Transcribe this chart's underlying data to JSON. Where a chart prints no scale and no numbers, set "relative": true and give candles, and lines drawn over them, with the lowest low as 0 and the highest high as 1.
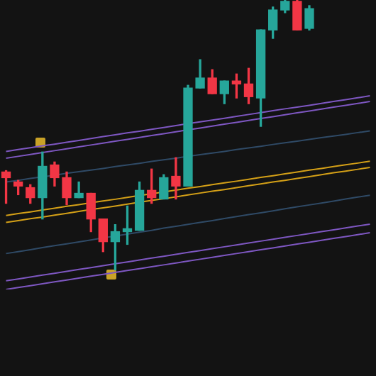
{
  "chart_data": {
    "type": "candlestick",
    "relative": true,
    "categories": [
      null,
      null,
      null,
      null,
      null,
      null,
      null,
      null,
      null,
      null,
      null,
      null,
      null,
      null,
      null,
      null,
      null,
      null,
      null,
      null,
      null,
      null,
      null,
      null,
      null,
      null,
      null,
      null,
      null,
      null,
      null
    ],
    "ohlc": [
      [
        0.363,
        0.368,
        0.247,
        0.342
      ],
      [
        0.326,
        0.332,
        0.279,
        0.311
      ],
      [
        0.305,
        0.316,
        0.247,
        0.268
      ],
      [
        0.268,
        0.437,
        0.189,
        0.384
      ],
      [
        0.389,
        0.4,
        0.311,
        0.342
      ],
      [
        0.342,
        0.363,
        0.242,
        0.268
      ],
      [
        0.268,
        0.326,
        0.268,
        0.284
      ],
      [
        0.284,
        0.284,
        0.142,
        0.189
      ],
      [
        0.189,
        0.189,
        0.068,
        0.105
      ],
      [
        0.105,
        0.168,
        0,
        0.142
      ],
      [
        0.142,
        0.237,
        0.095,
        0.153
      ],
      [
        0.147,
        0.326,
        0.147,
        0.295
      ],
      [
        0.295,
        0.374,
        0.247,
        0.268
      ],
      [
        0.263,
        0.353,
        0.263,
        0.342
      ],
      [
        0.347,
        0.416,
        0.263,
        0.311
      ],
      [
        0.311,
        0.684,
        0.311,
        0.674
      ],
      [
        0.674,
        0.779,
        0.674,
        0.711
      ],
      [
        0.711,
        0.742,
        0.653,
        0.653
      ],
      [
        0.653,
        0.7,
        0.616,
        0.7
      ],
      [
        0.7,
        0.726,
        0.637,
        0.689
      ],
      [
        0.689,
        0.747,
        0.616,
        0.642
      ],
      [
        0.637,
        0.889,
        0.532,
        0.889
      ],
      [
        0.889,
        0.974,
        0.858,
        0.963
      ],
      [
        0.963,
        1,
        0.953,
        0.995
      ],
      [
        0.995,
        1,
        0.889,
        0.889
      ],
      [
        0.895,
        0.979,
        0.889,
        0.968
      ],
      null,
      null,
      null,
      null,
      null
    ],
    "colors": [
      "#f23645",
      "#f23645",
      "#f23645",
      "#26a69a",
      "#f23645",
      "#f23645",
      "#26a69a",
      "#f23645",
      "#f23645",
      "#26a69a",
      "#26a69a",
      "#26a69a",
      "#f23645",
      "#26a69a",
      "#f23645",
      "#26a69a",
      "#26a69a",
      "#f23645",
      "#26a69a",
      "#f23645",
      "#f23645",
      "#26a69a",
      "#26a69a",
      "#26a69a",
      "#f23645",
      "#26a69a",
      null,
      null,
      null,
      null,
      null
    ],
    "series": [
      {
        "type": "line",
        "color": "#7e57c2",
        "values": [
          0.439,
          0.446,
          0.453,
          0.46,
          0.466,
          0.473,
          0.48,
          0.487,
          0.494,
          0.501,
          0.508,
          0.514,
          0.521,
          0.528,
          0.535,
          0.542,
          0.549,
          0.555,
          0.562,
          0.569,
          0.576,
          0.583,
          0.59,
          0.597,
          0.603,
          0.61,
          0.617,
          0.624,
          0.631,
          0.638,
          0.645
        ]
      },
      {
        "type": "line",
        "color": "#7e57c2",
        "values": [
          0.414,
          0.421,
          0.428,
          0.435,
          0.442,
          0.449,
          0.456,
          0.463,
          0.47,
          0.477,
          0.484,
          0.491,
          0.498,
          0.505,
          0.512,
          0.519,
          0.526,
          0.533,
          0.54,
          0.547,
          0.554,
          0.561,
          0.568,
          0.575,
          0.582,
          0.589,
          0.596,
          0.603,
          0.61,
          0.617,
          0.624
        ]
      },
      {
        "type": "line",
        "color": "#2f4a66",
        "values": [
          0.326,
          0.332,
          0.339,
          0.345,
          0.351,
          0.358,
          0.364,
          0.37,
          0.376,
          0.383,
          0.389,
          0.395,
          0.402,
          0.408,
          0.414,
          0.421,
          0.427,
          0.433,
          0.439,
          0.446,
          0.452,
          0.458,
          0.465,
          0.471,
          0.477,
          0.484,
          0.49,
          0.496,
          0.502,
          0.509,
          0.515
        ]
      },
      {
        "type": "line",
        "color": "#d4a017",
        "values": [
          0.202,
          0.209,
          0.215,
          0.222,
          0.229,
          0.236,
          0.242,
          0.249,
          0.256,
          0.262,
          0.269,
          0.276,
          0.282,
          0.289,
          0.296,
          0.303,
          0.309,
          0.316,
          0.323,
          0.329,
          0.336,
          0.343,
          0.349,
          0.356,
          0.363,
          0.37,
          0.376,
          0.383,
          0.39,
          0.396,
          0.403
        ]
      },
      {
        "type": "line",
        "color": "#d4a017",
        "values": [
          0.176,
          0.183,
          0.19,
          0.196,
          0.203,
          0.21,
          0.217,
          0.224,
          0.23,
          0.237,
          0.244,
          0.251,
          0.258,
          0.264,
          0.271,
          0.278,
          0.285,
          0.292,
          0.298,
          0.305,
          0.312,
          0.319,
          0.326,
          0.332,
          0.339,
          0.346,
          0.353,
          0.36,
          0.366,
          0.373,
          0.38
        ]
      },
      {
        "type": "line",
        "color": "#2f4a66",
        "values": [
          0.061,
          0.068,
          0.075,
          0.083,
          0.09,
          0.097,
          0.104,
          0.111,
          0.119,
          0.126,
          0.133,
          0.14,
          0.147,
          0.155,
          0.162,
          0.169,
          0.176,
          0.183,
          0.191,
          0.198,
          0.205,
          0.212,
          0.219,
          0.227,
          0.234,
          0.241,
          0.248,
          0.255,
          0.263,
          0.27,
          0.277
        ]
      },
      {
        "type": "line",
        "color": "#7e57c2",
        "values": [
          -0.04,
          -0.033,
          -0.026,
          -0.019,
          -0.012,
          -0.005,
          0.002,
          0.009,
          0.016,
          0.023,
          0.03,
          0.037,
          0.044,
          0.051,
          0.058,
          0.065,
          0.072,
          0.079,
          0.086,
          0.093,
          0.1,
          0.107,
          0.114,
          0.121,
          0.128,
          0.135,
          0.142,
          0.149,
          0.156,
          0.163,
          0.17
        ]
      },
      {
        "type": "line",
        "color": "#7e57c2",
        "values": [
          -0.072,
          -0.065,
          -0.058,
          -0.051,
          -0.044,
          -0.037,
          -0.03,
          -0.023,
          -0.016,
          -0.009,
          -0.002,
          0.005,
          0.012,
          0.019,
          0.026,
          0.033,
          0.04,
          0.047,
          0.054,
          0.061,
          0.068,
          0.075,
          0.082,
          0.089,
          0.096,
          0.103,
          0.11,
          0.117,
          0.124,
          0.131,
          0.138
        ]
      }
    ]
  }
}
